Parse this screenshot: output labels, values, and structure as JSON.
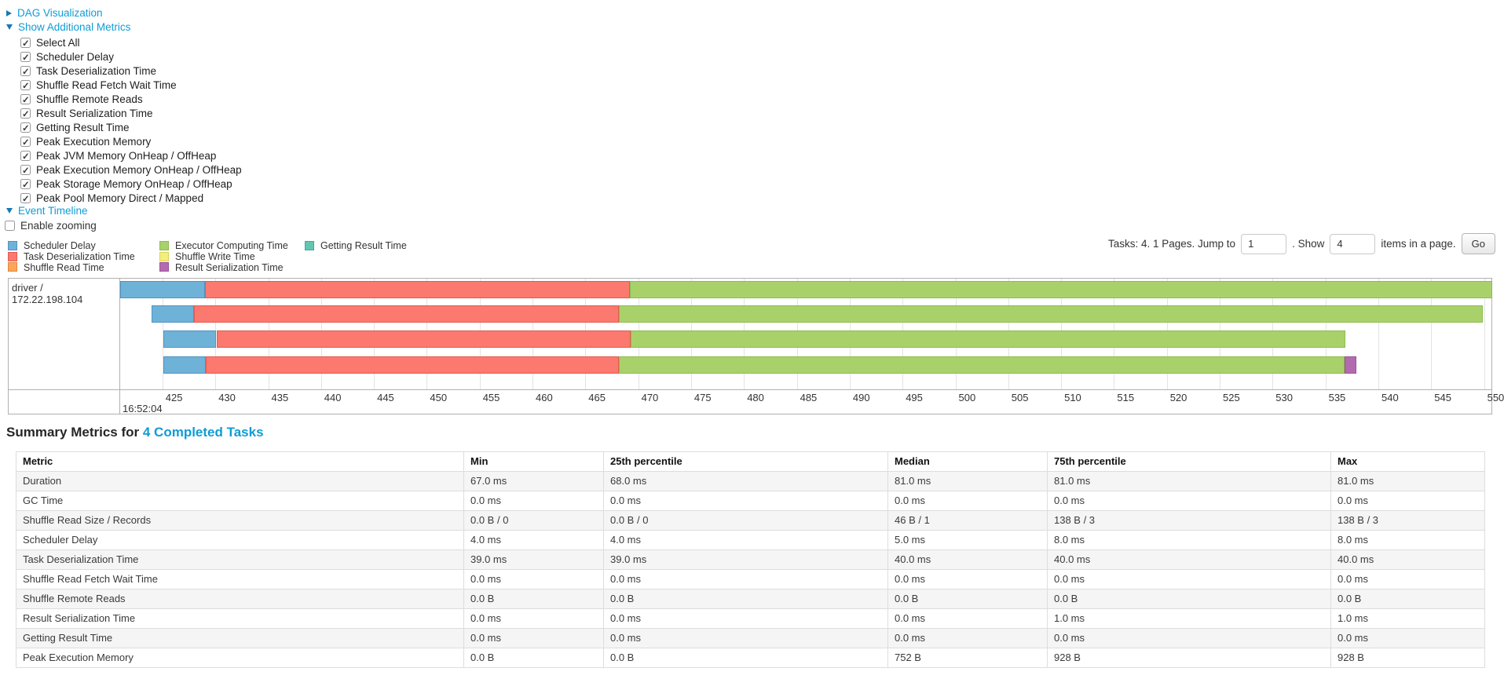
{
  "controls": {
    "dag": {
      "label": "DAG Visualization"
    },
    "metrics_toggle": {
      "label": "Show Additional Metrics"
    },
    "metric_checkboxes": [
      {
        "label": "Select All",
        "checked": true
      },
      {
        "label": "Scheduler Delay",
        "checked": true
      },
      {
        "label": "Task Deserialization Time",
        "checked": true
      },
      {
        "label": "Shuffle Read Fetch Wait Time",
        "checked": true
      },
      {
        "label": "Shuffle Remote Reads",
        "checked": true
      },
      {
        "label": "Result Serialization Time",
        "checked": true
      },
      {
        "label": "Getting Result Time",
        "checked": true
      },
      {
        "label": "Peak Execution Memory",
        "checked": true
      },
      {
        "label": "Peak JVM Memory OnHeap / OffHeap",
        "checked": true
      },
      {
        "label": "Peak Execution Memory OnHeap / OffHeap",
        "checked": true
      },
      {
        "label": "Peak Storage Memory OnHeap / OffHeap",
        "checked": true
      },
      {
        "label": "Peak Pool Memory Direct / Mapped",
        "checked": true
      }
    ],
    "event_timeline": {
      "label": "Event Timeline"
    },
    "enable_zooming": {
      "label": "Enable zooming",
      "checked": false
    }
  },
  "pagination": {
    "prefix": "Tasks: 4. 1 Pages. Jump to",
    "jump_value": "1",
    "mid": ". Show",
    "show_value": "4",
    "suffix": "items in a page.",
    "go_label": "Go"
  },
  "legend": {
    "columns": [
      [
        {
          "label": "Scheduler Delay",
          "color_key": "scheduler_delay"
        },
        {
          "label": "Task Deserialization Time",
          "color_key": "task_deserialization"
        },
        {
          "label": "Shuffle Read Time",
          "color_key": "shuffle_read"
        }
      ],
      [
        {
          "label": "Executor Computing Time",
          "color_key": "executor_computing"
        },
        {
          "label": "Shuffle Write Time",
          "color_key": "shuffle_write"
        },
        {
          "label": "Result Serialization Time",
          "color_key": "result_serialization"
        }
      ],
      [
        {
          "label": "Getting Result Time",
          "color_key": "getting_result"
        }
      ]
    ]
  },
  "chart_data": {
    "type": "timeline",
    "row_label": "driver / 172.22.198.104",
    "time_label": "16:52:04",
    "axis": {
      "min": 421.0,
      "max": 550.7,
      "unit": "ms",
      "ticks": [
        425,
        430,
        435,
        440,
        445,
        450,
        455,
        460,
        465,
        470,
        475,
        480,
        485,
        490,
        495,
        500,
        505,
        510,
        515,
        520,
        525,
        530,
        535,
        540,
        545,
        550
      ]
    },
    "colors": {
      "scheduler_delay": {
        "fill": "#6FB2D8",
        "border": "#4E94C4"
      },
      "task_deserialization": {
        "fill": "#FB796E",
        "border": "#E25B50"
      },
      "shuffle_read": {
        "fill": "#FBA75B",
        "border": "#E0883B"
      },
      "executor_computing": {
        "fill": "#A9D16A",
        "border": "#8DBC4E"
      },
      "shuffle_write": {
        "fill": "#F3EE7E",
        "border": "#D8D35A"
      },
      "result_serialization": {
        "fill": "#B36BB0",
        "border": "#9A5298"
      },
      "getting_result": {
        "fill": "#62C6B2",
        "border": "#46A994"
      }
    },
    "tasks": [
      {
        "segments": [
          {
            "name": "scheduler_delay",
            "start": 421.0,
            "end": 429.0
          },
          {
            "name": "task_deserialization",
            "start": 429.0,
            "end": 469.2
          },
          {
            "name": "executor_computing",
            "start": 469.2,
            "end": 550.8
          }
        ]
      },
      {
        "segments": [
          {
            "name": "scheduler_delay",
            "start": 424.0,
            "end": 428.0
          },
          {
            "name": "task_deserialization",
            "start": 428.0,
            "end": 468.2
          },
          {
            "name": "executor_computing",
            "start": 468.2,
            "end": 549.9
          }
        ]
      },
      {
        "segments": [
          {
            "name": "scheduler_delay",
            "start": 425.1,
            "end": 430.1
          },
          {
            "name": "task_deserialization",
            "start": 430.1,
            "end": 469.3
          },
          {
            "name": "executor_computing",
            "start": 469.3,
            "end": 536.9
          }
        ]
      },
      {
        "segments": [
          {
            "name": "scheduler_delay",
            "start": 425.1,
            "end": 429.1
          },
          {
            "name": "task_deserialization",
            "start": 429.1,
            "end": 468.2
          },
          {
            "name": "executor_computing",
            "start": 468.2,
            "end": 536.8
          },
          {
            "name": "result_serialization",
            "start": 536.8,
            "end": 537.9
          }
        ]
      }
    ]
  },
  "summary": {
    "title_prefix": "Summary Metrics for",
    "title_link": "4 Completed Tasks",
    "headers": [
      "Metric",
      "Min",
      "25th percentile",
      "Median",
      "75th percentile",
      "Max"
    ],
    "rows": [
      {
        "metric": "Duration",
        "values": [
          "67.0 ms",
          "68.0 ms",
          "81.0 ms",
          "81.0 ms",
          "81.0 ms"
        ]
      },
      {
        "metric": "GC Time",
        "values": [
          "0.0 ms",
          "0.0 ms",
          "0.0 ms",
          "0.0 ms",
          "0.0 ms"
        ]
      },
      {
        "metric": "Shuffle Read Size / Records",
        "values": [
          "0.0 B / 0",
          "0.0 B / 0",
          "46 B / 1",
          "138 B / 3",
          "138 B / 3"
        ]
      },
      {
        "metric": "Scheduler Delay",
        "values": [
          "4.0 ms",
          "4.0 ms",
          "5.0 ms",
          "8.0 ms",
          "8.0 ms"
        ]
      },
      {
        "metric": "Task Deserialization Time",
        "values": [
          "39.0 ms",
          "39.0 ms",
          "40.0 ms",
          "40.0 ms",
          "40.0 ms"
        ]
      },
      {
        "metric": "Shuffle Read Fetch Wait Time",
        "values": [
          "0.0 ms",
          "0.0 ms",
          "0.0 ms",
          "0.0 ms",
          "0.0 ms"
        ]
      },
      {
        "metric": "Shuffle Remote Reads",
        "values": [
          "0.0 B",
          "0.0 B",
          "0.0 B",
          "0.0 B",
          "0.0 B"
        ]
      },
      {
        "metric": "Result Serialization Time",
        "values": [
          "0.0 ms",
          "0.0 ms",
          "0.0 ms",
          "1.0 ms",
          "1.0 ms"
        ]
      },
      {
        "metric": "Getting Result Time",
        "values": [
          "0.0 ms",
          "0.0 ms",
          "0.0 ms",
          "0.0 ms",
          "0.0 ms"
        ]
      },
      {
        "metric": "Peak Execution Memory",
        "values": [
          "0.0 B",
          "0.0 B",
          "752 B",
          "928 B",
          "928 B"
        ]
      }
    ]
  }
}
